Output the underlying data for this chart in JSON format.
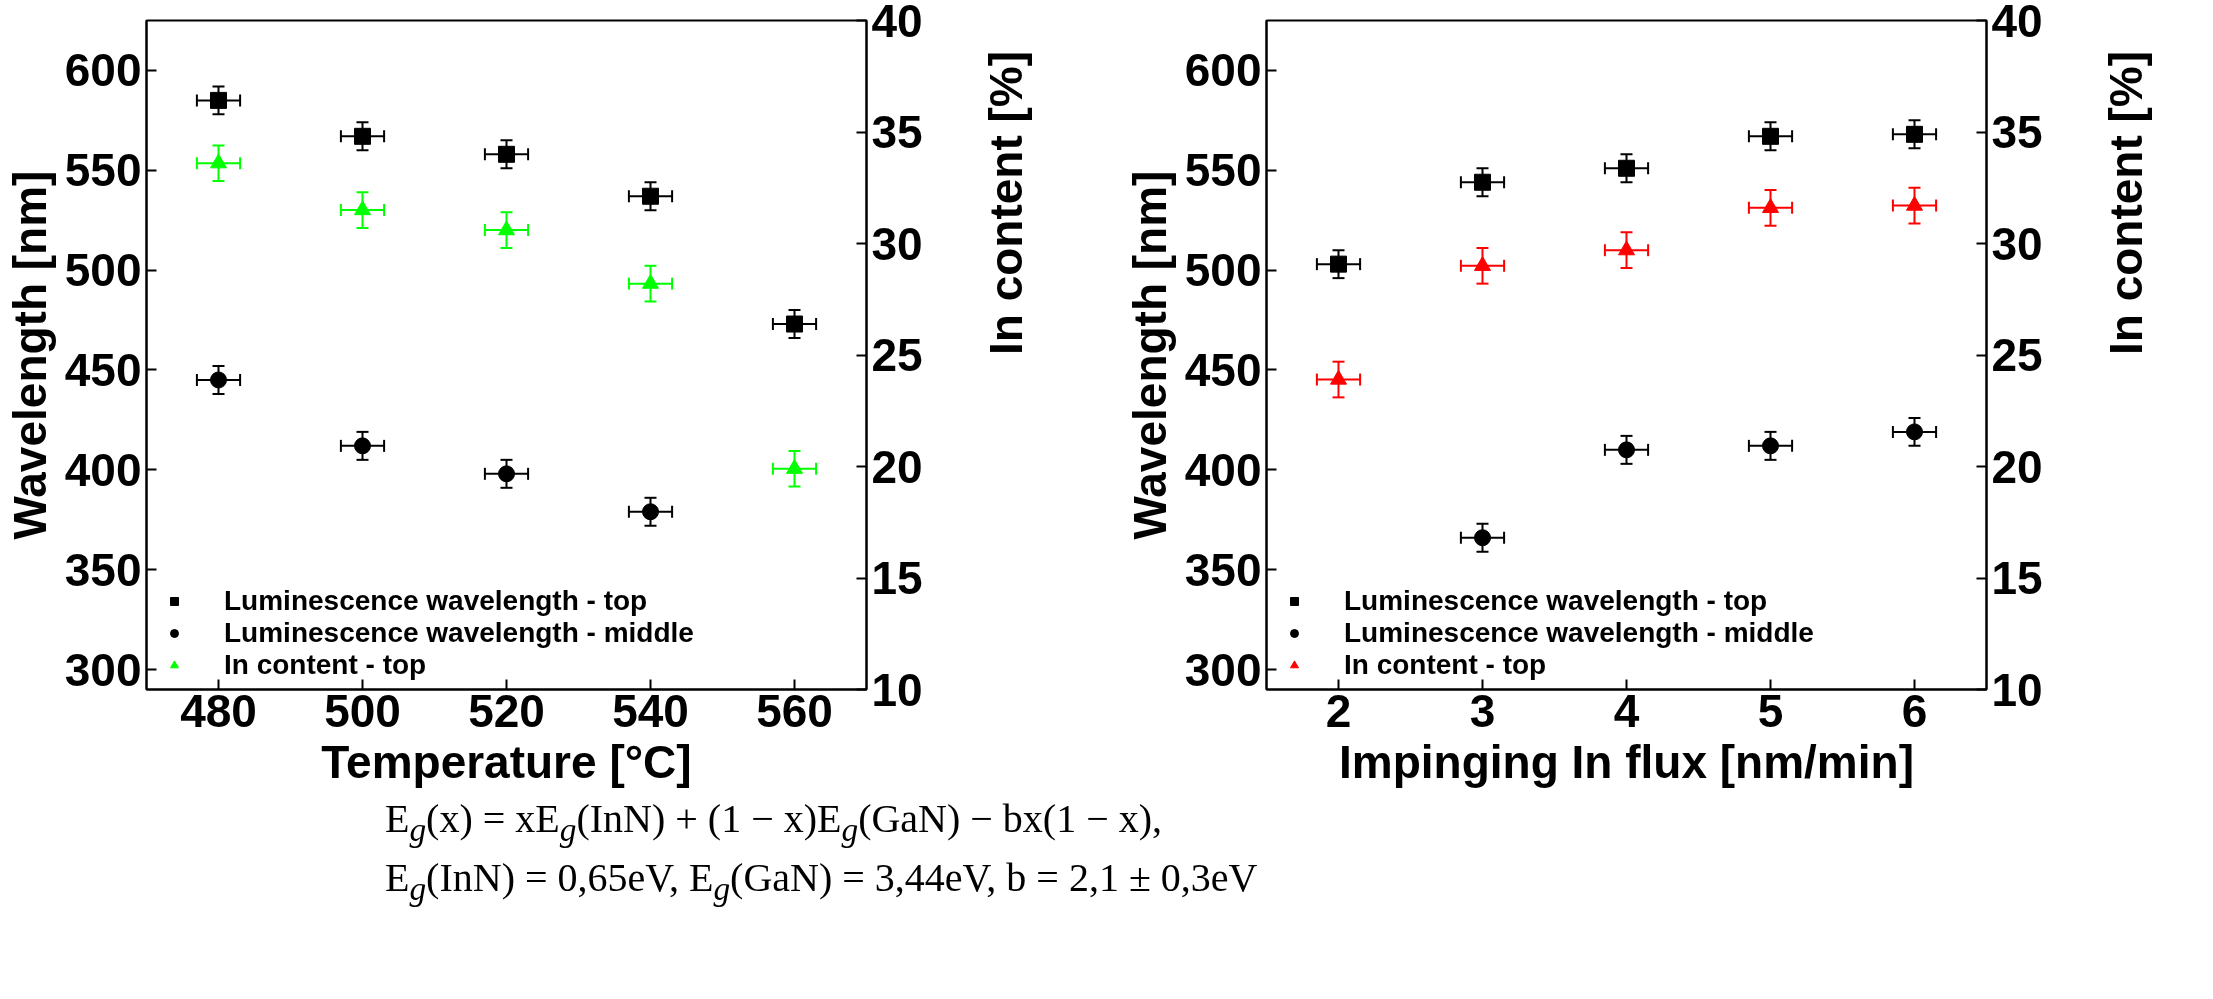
{
  "chart_data": [
    {
      "type": "scatter",
      "xlabel": "Temperature [°C]",
      "ylabel": "Wavelength [nm]",
      "y2label": "In content [%]",
      "x": [
        480,
        500,
        520,
        540,
        560
      ],
      "xlim": [
        470,
        570
      ],
      "xticks": [
        480,
        500,
        520,
        540,
        560
      ],
      "ylim": [
        290,
        625
      ],
      "yticks": [
        300,
        350,
        400,
        450,
        500,
        550,
        600
      ],
      "y2lim": [
        10,
        40
      ],
      "y2ticks": [
        10,
        15,
        20,
        25,
        30,
        35,
        40
      ],
      "legend": "bottom left",
      "grid": false,
      "series": [
        {
          "name": "Luminescence wavelength - top",
          "color": "#000000",
          "marker": "square",
          "values": [
            585,
            567,
            558,
            537,
            473
          ],
          "errors": [
            7,
            7,
            7,
            7,
            7
          ],
          "xerrors": [
            3,
            3,
            3,
            3,
            3
          ]
        },
        {
          "name": "Luminescence wavelength - middle",
          "color": "#000000",
          "marker": "circle",
          "x": [
            480,
            500,
            520,
            540
          ],
          "values": [
            445,
            412,
            398,
            379
          ],
          "errors": [
            7,
            7,
            7,
            7
          ],
          "xerrors": [
            3,
            3,
            3,
            3
          ]
        },
        {
          "name": "In content - top",
          "color": "#00ff00",
          "marker": "triangle",
          "axis": "y2",
          "values": [
            33.6,
            31.5,
            30.6,
            28.2,
            19.9
          ],
          "errors": [
            0.8,
            0.8,
            0.8,
            0.8,
            0.8
          ],
          "xerrors": [
            3,
            3,
            3,
            3,
            3
          ]
        }
      ]
    },
    {
      "type": "scatter",
      "xlabel": "Impinging In flux [nm/min]",
      "ylabel": "Wavelength [nm]",
      "y2label": "In content [%]",
      "x": [
        2,
        3,
        4,
        5,
        6
      ],
      "xlim": [
        1.5,
        6.5
      ],
      "xticks": [
        2,
        3,
        4,
        5,
        6
      ],
      "ylim": [
        290,
        625
      ],
      "yticks": [
        300,
        350,
        400,
        450,
        500,
        550,
        600
      ],
      "y2lim": [
        10,
        40
      ],
      "y2ticks": [
        10,
        15,
        20,
        25,
        30,
        35,
        40
      ],
      "legend": "bottom left",
      "grid": false,
      "annotations": [
        "E$_{g}$(x) = xE$_{g}$(InN) + (1 − x)E$_{g}$(GaN) − bx(1 − x),",
        "E$_{g}$(InN) = 0,65eV, E$_{g}$(GaN) = 3,44eV, b = 2,1 ± 0,3eV"
      ],
      "series": [
        {
          "name": "Luminescence wavelength - top",
          "color": "#000000",
          "marker": "square",
          "values": [
            503,
            544,
            551,
            567,
            568
          ],
          "errors": [
            7,
            7,
            7,
            7,
            7
          ],
          "xerrors": [
            0.15,
            0.15,
            0.15,
            0.15,
            0.15
          ]
        },
        {
          "name": "Luminescence wavelength - middle",
          "color": "#000000",
          "marker": "circle",
          "x": [
            3,
            4,
            5,
            6
          ],
          "values": [
            366,
            410,
            412,
            419
          ],
          "errors": [
            7,
            7,
            7,
            7
          ],
          "xerrors": [
            0.15,
            0.15,
            0.15,
            0.15
          ]
        },
        {
          "name": "In content - top",
          "color": "#ff0000",
          "marker": "triangle",
          "axis": "y2",
          "values": [
            23.9,
            29.0,
            29.7,
            31.6,
            31.7
          ],
          "errors": [
            0.8,
            0.8,
            0.8,
            0.8,
            0.8
          ],
          "xerrors": [
            0.15,
            0.15,
            0.15,
            0.15,
            0.15
          ]
        }
      ]
    }
  ]
}
